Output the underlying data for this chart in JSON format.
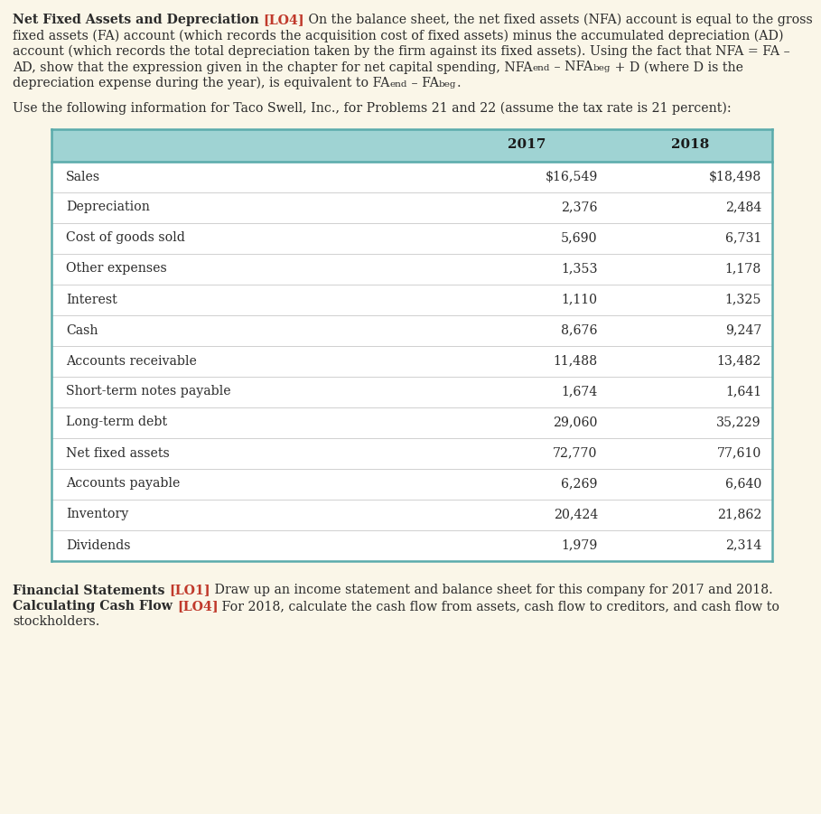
{
  "page_bg": "#faf6e8",
  "header_lines": [
    [
      {
        "text": "Net Fixed Assets and Depreciation ",
        "bold": true,
        "color": "#2b2b2b",
        "fontsize": 10.2
      },
      {
        "text": "[LO4]",
        "bold": true,
        "color": "#c0392b",
        "fontsize": 10.2
      },
      {
        "text": " On the balance sheet, the net fixed assets (NFA) account is equal to the gross",
        "bold": false,
        "color": "#2b2b2b",
        "fontsize": 10.2
      }
    ],
    [
      {
        "text": "fixed assets (FA) account (which records the acquisition cost of fixed assets) minus the accumulated depreciation (AD)",
        "bold": false,
        "color": "#2b2b2b",
        "fontsize": 10.2
      }
    ],
    [
      {
        "text": "account (which records the total depreciation taken by the firm against its fixed assets). Using the fact that NFA = FA –",
        "bold": false,
        "color": "#2b2b2b",
        "fontsize": 10.2
      }
    ],
    [
      {
        "text": "AD, show that the expression given in the chapter for net capital spending, NFA",
        "bold": false,
        "color": "#2b2b2b",
        "fontsize": 10.2
      },
      {
        "text": "end",
        "bold": false,
        "color": "#2b2b2b",
        "fontsize": 7.5,
        "sub": true
      },
      {
        "text": " – NFA",
        "bold": false,
        "color": "#2b2b2b",
        "fontsize": 10.2
      },
      {
        "text": "beg",
        "bold": false,
        "color": "#2b2b2b",
        "fontsize": 7.5,
        "sub": true
      },
      {
        "text": " + D (where D is the",
        "bold": false,
        "color": "#2b2b2b",
        "fontsize": 10.2
      }
    ],
    [
      {
        "text": "depreciation expense during the year), is equivalent to FA",
        "bold": false,
        "color": "#2b2b2b",
        "fontsize": 10.2
      },
      {
        "text": "end",
        "bold": false,
        "color": "#2b2b2b",
        "fontsize": 7.5,
        "sub": true
      },
      {
        "text": " – FA",
        "bold": false,
        "color": "#2b2b2b",
        "fontsize": 10.2
      },
      {
        "text": "beg",
        "bold": false,
        "color": "#2b2b2b",
        "fontsize": 7.5,
        "sub": true
      },
      {
        "text": ".",
        "bold": false,
        "color": "#2b2b2b",
        "fontsize": 10.2
      }
    ]
  ],
  "intro_text": "Use the following information for Taco Swell, Inc., for Problems 21 and 22 (assume the tax rate is 21 percent):",
  "table": {
    "header_bg": "#9fd3d3",
    "header_text_color": "#1a1a1a",
    "body_bg": "#ffffff",
    "border_color": "#5aabab",
    "row_sep_color": "#d0d0d0",
    "col_headers": [
      "",
      "2017",
      "2018"
    ],
    "rows": [
      [
        "Sales",
        "$16,549",
        "$18,498"
      ],
      [
        "Depreciation",
        "2,376",
        "2,484"
      ],
      [
        "Cost of goods sold",
        "5,690",
        "6,731"
      ],
      [
        "Other expenses",
        "1,353",
        "1,178"
      ],
      [
        "Interest",
        "1,110",
        "1,325"
      ],
      [
        "Cash",
        "8,676",
        "9,247"
      ],
      [
        "Accounts receivable",
        "11,488",
        "13,482"
      ],
      [
        "Short-term notes payable",
        "1,674",
        "1,641"
      ],
      [
        "Long-term debt",
        "29,060",
        "35,229"
      ],
      [
        "Net fixed assets",
        "72,770",
        "77,610"
      ],
      [
        "Accounts payable",
        "6,269",
        "6,640"
      ],
      [
        "Inventory",
        "20,424",
        "21,862"
      ],
      [
        "Dividends",
        "1,979",
        "2,314"
      ]
    ]
  },
  "footer_lines": [
    [
      {
        "text": "Financial Statements ",
        "bold": true,
        "color": "#2b2b2b",
        "fontsize": 10.2
      },
      {
        "text": "[LO1]",
        "bold": true,
        "color": "#c0392b",
        "fontsize": 10.2
      },
      {
        "text": " Draw up an income statement and balance sheet for this company for 2017 and 2018.",
        "bold": false,
        "color": "#2b2b2b",
        "fontsize": 10.2
      }
    ],
    [
      {
        "text": "Calculating Cash Flow ",
        "bold": true,
        "color": "#2b2b2b",
        "fontsize": 10.2
      },
      {
        "text": "[LO4]",
        "bold": true,
        "color": "#c0392b",
        "fontsize": 10.2
      },
      {
        "text": " For 2018, calculate the cash flow from assets, cash flow to creditors, and cash flow to",
        "bold": false,
        "color": "#2b2b2b",
        "fontsize": 10.2
      }
    ],
    [
      {
        "text": "stockholders.",
        "bold": false,
        "color": "#2b2b2b",
        "fontsize": 10.2
      }
    ]
  ]
}
